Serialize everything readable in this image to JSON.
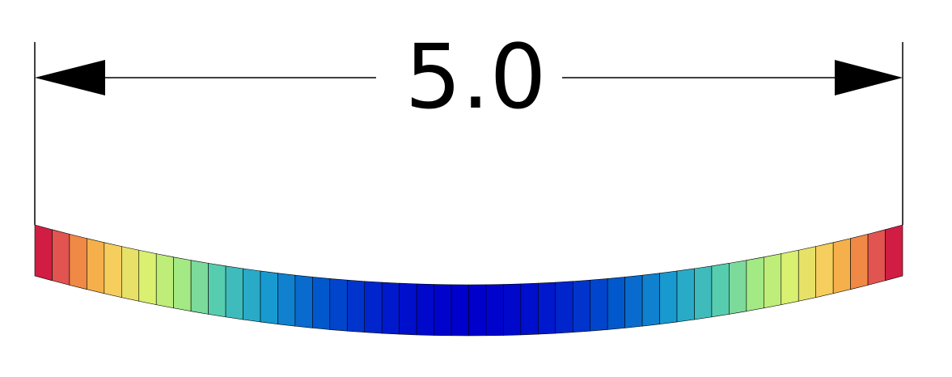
{
  "dimension": {
    "label": "5.0",
    "line_color": "#000000"
  },
  "beam": {
    "element_count": 50,
    "deflection_profile": "parabolic",
    "colormap": "jet-like",
    "colormap_stops": [
      "#0000cc",
      "#0055cc",
      "#1aa0d0",
      "#55ccb0",
      "#aaeb80",
      "#ddf070",
      "#f5d060",
      "#f7a040",
      "#e05050",
      "#c8003c"
    ],
    "edge_color": "#000000"
  }
}
